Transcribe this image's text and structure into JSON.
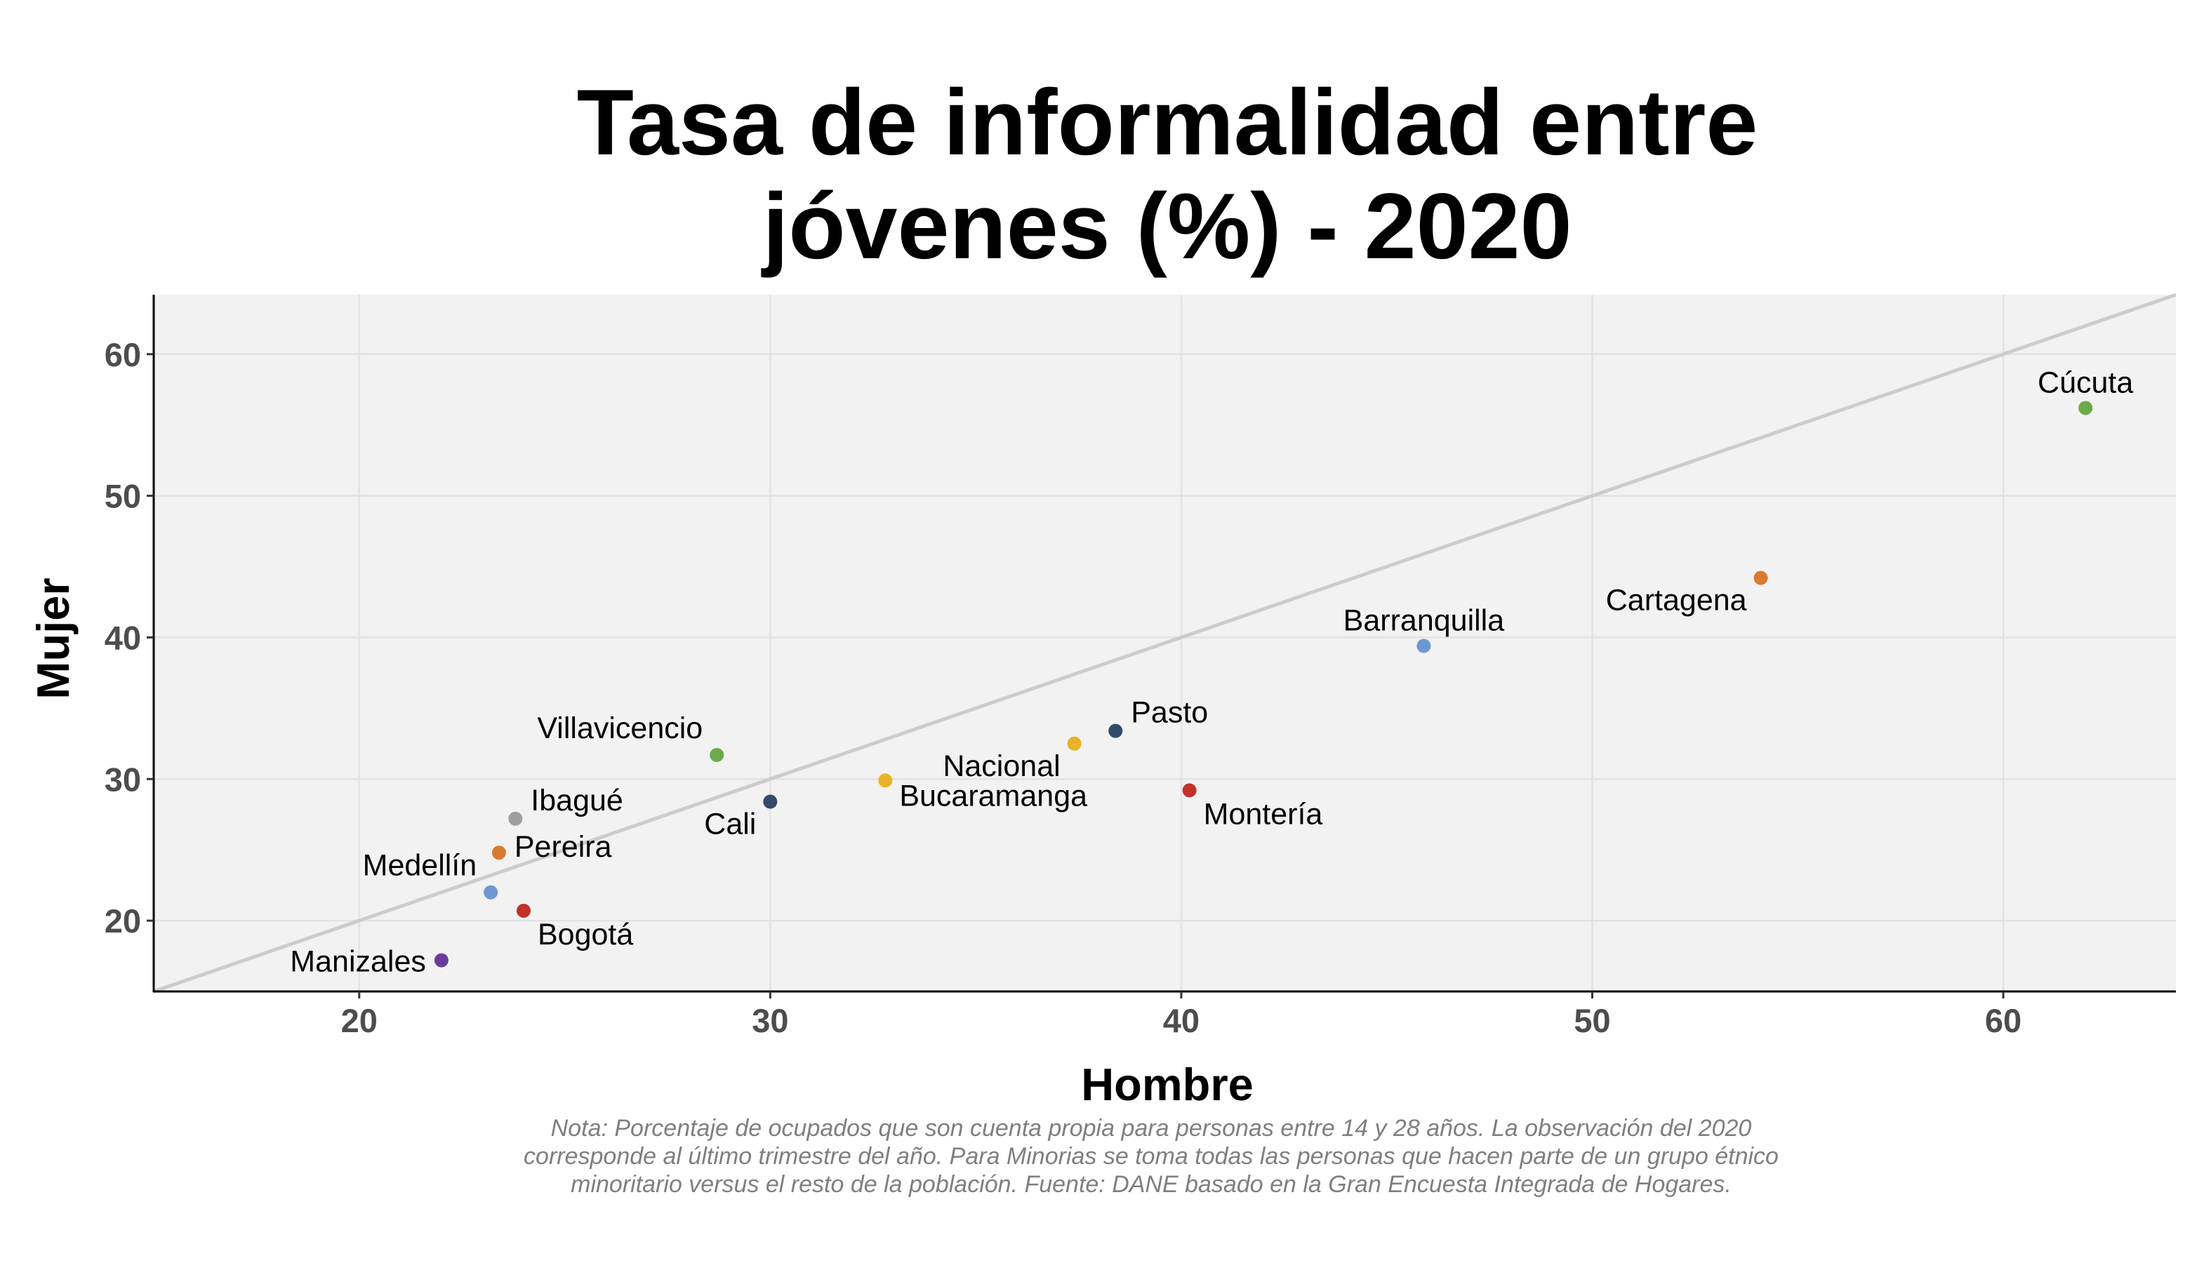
{
  "chart_data": {
    "type": "scatter",
    "title": "Tasa de informalidad entre jóvenes (%) - 2020",
    "title_lines": [
      "Tasa de informalidad entre",
      "jóvenes (%) - 2020"
    ],
    "xlabel": "Hombre",
    "ylabel": "Mujer",
    "xlim": [
      15,
      64.2
    ],
    "ylim": [
      15,
      64.2
    ],
    "xticks": [
      20,
      30,
      40,
      50,
      60
    ],
    "yticks": [
      20,
      30,
      40,
      50,
      60
    ],
    "grid": true,
    "reference_line": "y = x",
    "colors": {
      "panel_background": "#f2f2f2",
      "grid": "#e3e3e3",
      "reference_line": "#cccccc"
    },
    "points": [
      {
        "label": "Cúcuta",
        "x": 62.0,
        "y": 56.2,
        "color": "#6aaa4a",
        "label_pos": "above"
      },
      {
        "label": "Cartagena",
        "x": 54.1,
        "y": 44.2,
        "color": "#d87a30",
        "label_pos": "below-left"
      },
      {
        "label": "Barranquilla",
        "x": 45.9,
        "y": 39.4,
        "color": "#6f97d3",
        "label_pos": "above"
      },
      {
        "label": "Pasto",
        "x": 38.4,
        "y": 33.4,
        "color": "#334a6a",
        "label_pos": "above-right"
      },
      {
        "label": "Montería",
        "x": 40.2,
        "y": 29.2,
        "color": "#c0322b",
        "label_pos": "below-right"
      },
      {
        "label": "Nacional",
        "x": 37.4,
        "y": 32.5,
        "color": "#e8b326",
        "label_pos": "below-left"
      },
      {
        "label": "Bucaramanga",
        "x": 32.8,
        "y": 29.9,
        "color": "#e8b326",
        "label_pos": "below"
      },
      {
        "label": "Cali",
        "x": 30.0,
        "y": 28.4,
        "color": "#334a6a",
        "label_pos": "below-left"
      },
      {
        "label": "Villavicencio",
        "x": 28.7,
        "y": 31.7,
        "color": "#6aaa4a",
        "label_pos": "above-left"
      },
      {
        "label": "Ibagué",
        "x": 23.8,
        "y": 27.2,
        "color": "#9e9e9e",
        "label_pos": "above-right"
      },
      {
        "label": "Pereira",
        "x": 23.4,
        "y": 24.8,
        "color": "#d87a30",
        "label_pos": "right"
      },
      {
        "label": "Medellín",
        "x": 23.2,
        "y": 22.0,
        "color": "#6f97d3",
        "label_pos": "above-left"
      },
      {
        "label": "Bogotá",
        "x": 24.0,
        "y": 20.7,
        "color": "#c0322b",
        "label_pos": "below-right"
      },
      {
        "label": "Manizales",
        "x": 22.0,
        "y": 17.2,
        "color": "#6a3d9a",
        "label_pos": "left"
      }
    ]
  },
  "note": "Nota: Porcentaje de ocupados que son cuenta propia para personas entre 14 y 28 años. La observación del 2020 corresponde al último trimestre del año. Para Minorias se toma todas las personas que hacen parte de un grupo étnico minoritario versus el resto de la población. Fuente: DANE basado en la Gran Encuesta Integrada de Hogares."
}
